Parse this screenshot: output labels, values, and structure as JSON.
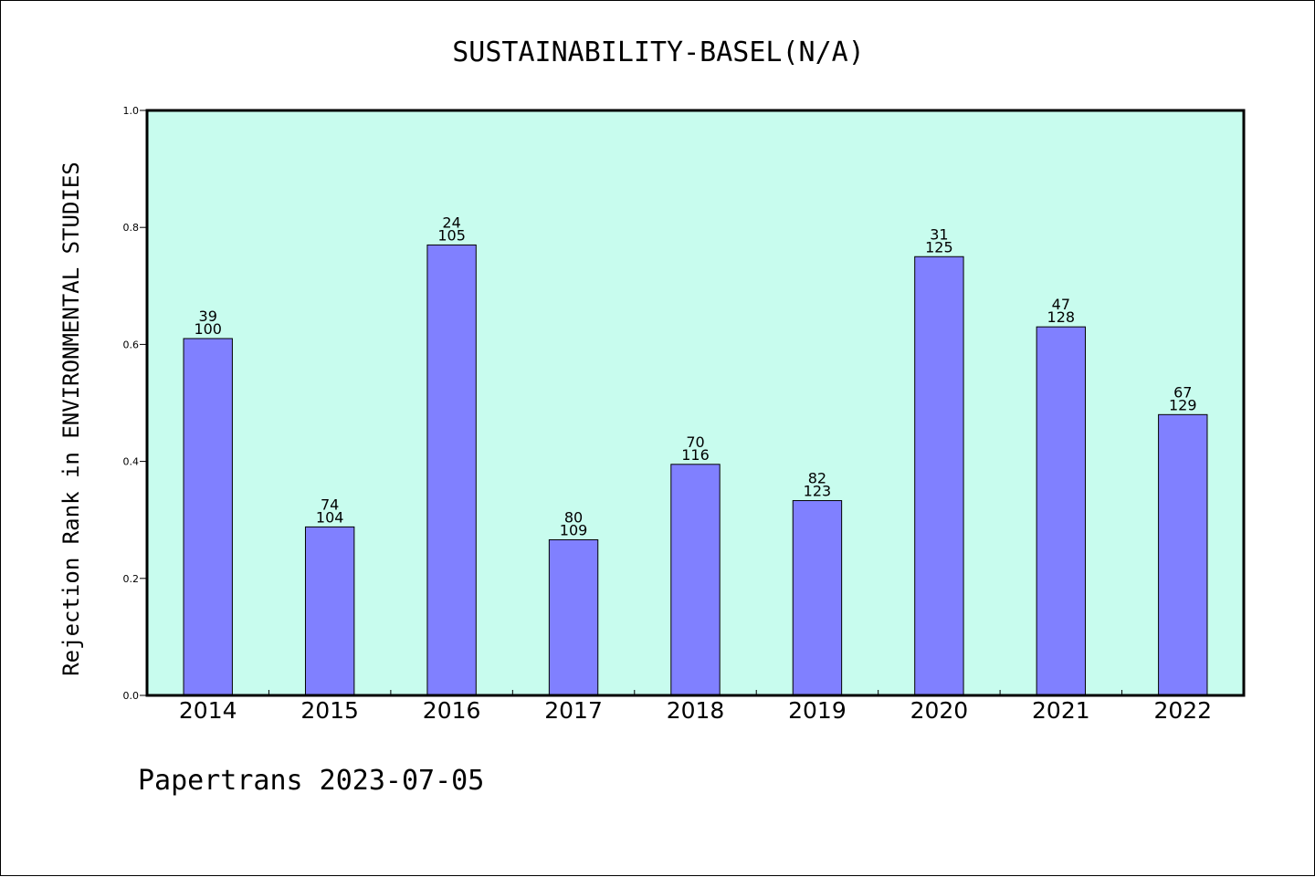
{
  "chart_data": {
    "type": "bar",
    "title": "SUSTAINABILITY-BASEL(N/A)",
    "ylabel": "Rejection Rank in ENVIRONMENTAL STUDIES",
    "xlabel": "",
    "ylim": [
      0,
      1.0
    ],
    "yticks": [
      "0.0",
      "0.2",
      "0.4",
      "0.6",
      "0.8",
      "1.0"
    ],
    "categories": [
      "2014",
      "2015",
      "2016",
      "2017",
      "2018",
      "2019",
      "2020",
      "2021",
      "2022"
    ],
    "values": [
      0.61,
      0.288,
      0.77,
      0.266,
      0.395,
      0.333,
      0.75,
      0.63,
      0.48
    ],
    "label_top": [
      "39",
      "74",
      "24",
      "80",
      "70",
      "82",
      "31",
      "47",
      "67"
    ],
    "label_bottom": [
      "100",
      "104",
      "105",
      "109",
      "116",
      "123",
      "125",
      "128",
      "129"
    ],
    "grid": false,
    "colors": {
      "plot_bg": "#c8fcee",
      "bar": "#8080ff",
      "bar_edge": "#000000"
    }
  },
  "footer": "Papertrans 2023-07-05"
}
